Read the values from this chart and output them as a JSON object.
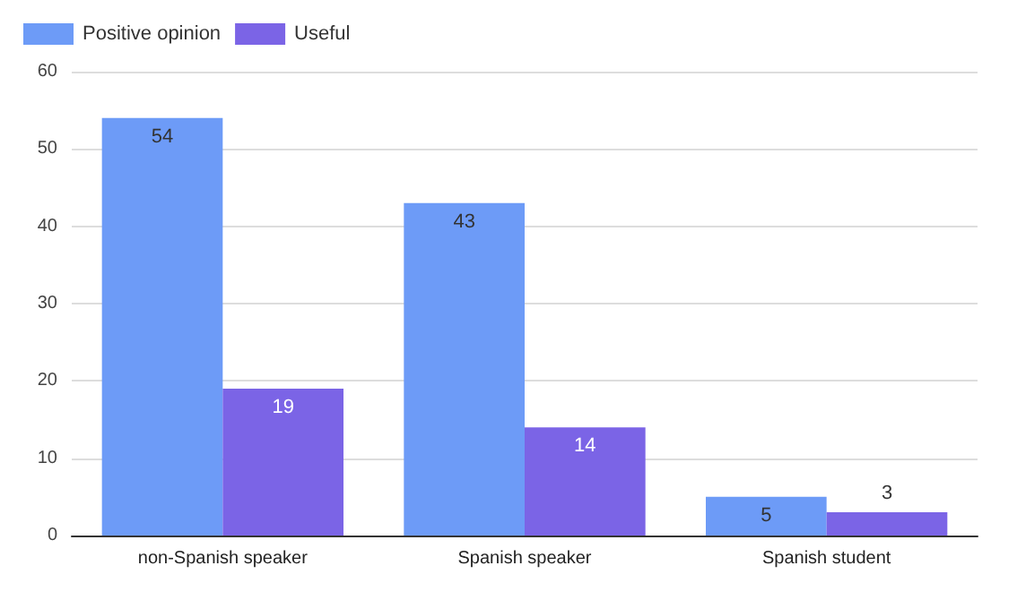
{
  "chart_data": {
    "type": "bar",
    "categories": [
      "non-Spanish speaker",
      "Spanish speaker",
      "Spanish student"
    ],
    "series": [
      {
        "name": "Positive opinion",
        "color": "#6d9bf7",
        "values": [
          54,
          43,
          5
        ]
      },
      {
        "name": "Useful",
        "color": "#7b64e6",
        "values": [
          19,
          14,
          3
        ]
      }
    ],
    "ylim": [
      0,
      60
    ],
    "yticks": [
      0,
      10,
      20,
      30,
      40,
      50,
      60
    ],
    "grid": "y",
    "legend": "top left",
    "data_labels": true
  }
}
